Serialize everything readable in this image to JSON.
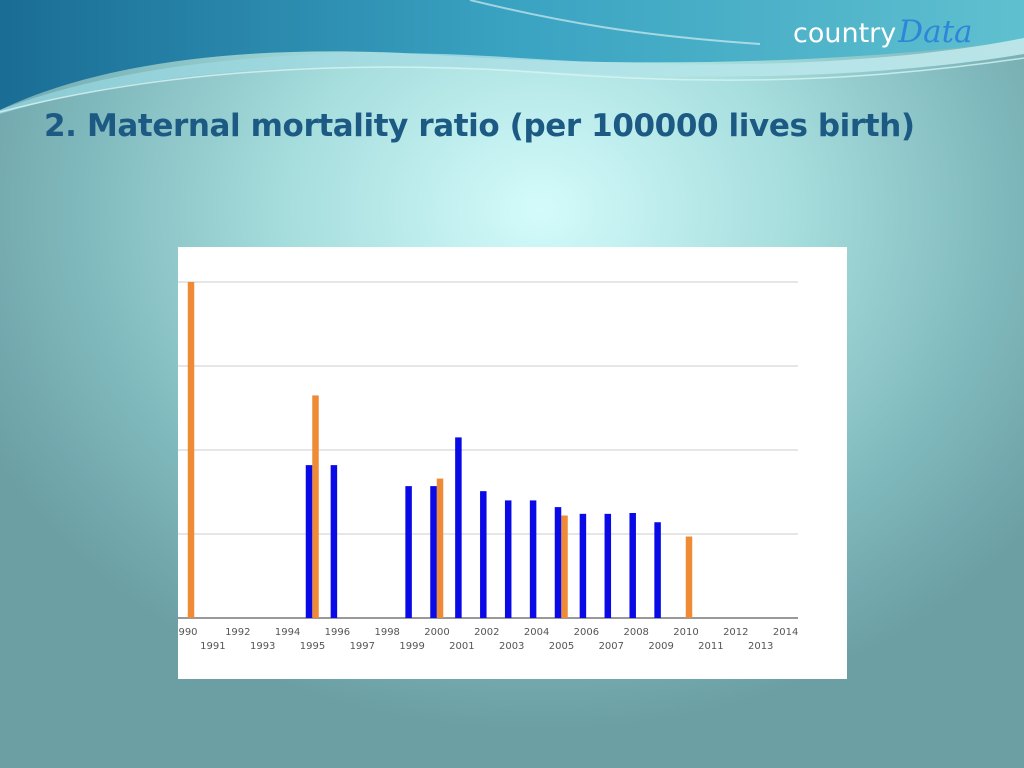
{
  "slide": {
    "title": "2. Maternal mortality ratio (per 100000 lives birth)"
  },
  "logo": {
    "word": "country",
    "accent": "Data",
    "accent_color": "#2e86d8"
  },
  "chart_data": {
    "type": "bar",
    "title": "",
    "xlabel": "",
    "ylabel": "",
    "x_ticks_top": [
      "990",
      "1992",
      "1994",
      "1996",
      "1998",
      "2000",
      "2002",
      "2004",
      "2006",
      "2008",
      "2010",
      "2012",
      "2014"
    ],
    "x_ticks_bottom": [
      "1991",
      "1993",
      "1995",
      "1997",
      "1999",
      "2001",
      "2003",
      "2005",
      "2007",
      "2009",
      "2011",
      "2013"
    ],
    "xlim": [
      1990,
      2014
    ],
    "ylim": [
      0,
      4
    ],
    "gridlines": 4,
    "grid": true,
    "y_tick_labels_visible": false,
    "series": [
      {
        "color": "#ef8a37",
        "points": [
          {
            "x": 1990,
            "y": 4.0
          },
          {
            "x": 1995,
            "y": 2.65
          },
          {
            "x": 2000,
            "y": 1.66
          },
          {
            "x": 2005,
            "y": 1.22
          },
          {
            "x": 2010,
            "y": 0.97
          }
        ]
      },
      {
        "color": "#0a0ae6",
        "points": [
          {
            "x": 1995,
            "y": 1.82
          },
          {
            "x": 1996,
            "y": 1.82
          },
          {
            "x": 1999,
            "y": 1.57
          },
          {
            "x": 2000,
            "y": 1.57
          },
          {
            "x": 2001,
            "y": 2.15
          },
          {
            "x": 2002,
            "y": 1.51
          },
          {
            "x": 2003,
            "y": 1.4
          },
          {
            "x": 2004,
            "y": 1.4
          },
          {
            "x": 2005,
            "y": 1.32
          },
          {
            "x": 2006,
            "y": 1.24
          },
          {
            "x": 2007,
            "y": 1.24
          },
          {
            "x": 2008,
            "y": 1.25
          },
          {
            "x": 2009,
            "y": 1.14
          }
        ]
      }
    ]
  }
}
